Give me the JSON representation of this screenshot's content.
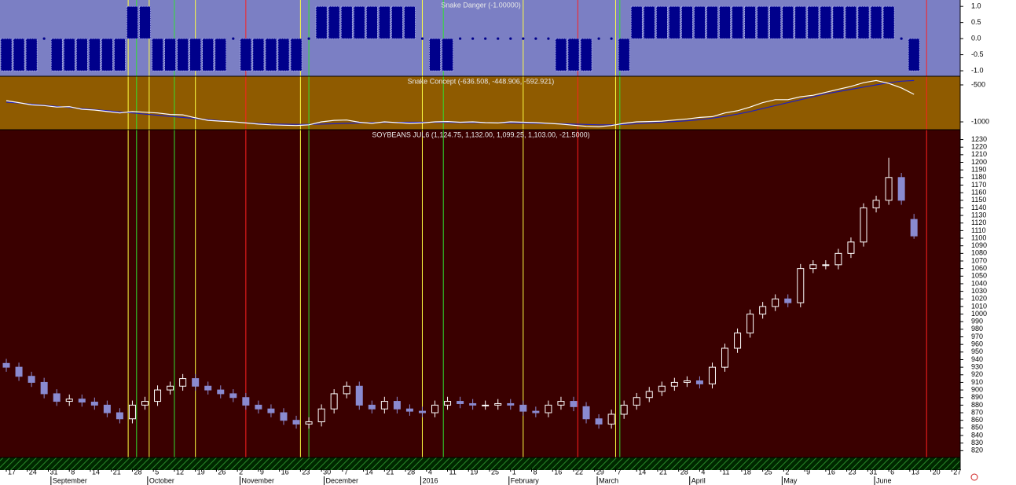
{
  "chart_data": [
    {
      "type": "bar",
      "title": "Snake Danger (-1.00000)",
      "color": "#00008b",
      "background": "#7b7fc4",
      "x": [
        0,
        3,
        6,
        9,
        12,
        15,
        18,
        21,
        24,
        27,
        30,
        33,
        36,
        39,
        42,
        45,
        48,
        51,
        54,
        57,
        60,
        63,
        66,
        69,
        72,
        75,
        78,
        81,
        84,
        87,
        90,
        93,
        96,
        99,
        102,
        105,
        108,
        111,
        114,
        117,
        120,
        123,
        126,
        129,
        132,
        135,
        138,
        141,
        144,
        147,
        150,
        153,
        156,
        159,
        162,
        165,
        168,
        171,
        174,
        177,
        180,
        183,
        186,
        189,
        192,
        195,
        198,
        201,
        204,
        207,
        210,
        213,
        216
      ],
      "values": [
        -1,
        -1,
        -1,
        0,
        -1,
        -1,
        -1,
        -1,
        -1,
        -1,
        1,
        1,
        -1,
        -1,
        -1,
        -1,
        -1,
        -1,
        0,
        -1,
        -1,
        -1,
        -1,
        -1,
        0,
        1,
        1,
        1,
        1,
        1,
        1,
        1,
        1,
        0,
        -1,
        -1,
        0,
        0,
        0,
        0,
        0,
        0,
        0,
        0,
        -1,
        -1,
        -1,
        0,
        0,
        -1,
        1,
        1,
        1,
        1,
        1,
        1,
        1,
        1,
        1,
        1,
        1,
        1,
        1,
        1,
        1,
        1,
        1,
        1,
        1,
        1,
        1,
        0,
        -1
      ],
      "xlim": [
        -1.5,
        227
      ],
      "ylim": [
        -1.17,
        1.2
      ],
      "yticks": [
        {
          "value": 1,
          "label": "1.0"
        },
        {
          "value": 0.5,
          "label": "0.5"
        },
        {
          "value": 0,
          "label": "0.0"
        },
        {
          "value": -0.5,
          "label": "-0.5"
        },
        {
          "value": -1,
          "label": "-1.0"
        }
      ]
    },
    {
      "type": "line",
      "title": "Snake Concept (-636.508, -448.906, -592.921)",
      "background": "#8f5b00",
      "x": [
        0,
        3,
        6,
        9,
        12,
        15,
        18,
        21,
        24,
        27,
        30,
        33,
        36,
        39,
        42,
        45,
        48,
        51,
        54,
        57,
        60,
        63,
        66,
        69,
        72,
        75,
        78,
        81,
        84,
        87,
        90,
        93,
        96,
        99,
        102,
        105,
        108,
        111,
        114,
        117,
        120,
        123,
        126,
        129,
        132,
        135,
        138,
        141,
        144,
        147,
        150,
        153,
        156,
        159,
        162,
        165,
        168,
        171,
        174,
        177,
        180,
        183,
        186,
        189,
        192,
        195,
        198,
        201,
        204,
        207,
        210,
        213,
        216
      ],
      "series": [
        {
          "color": "#2020c0",
          "values": [
            -734,
            -745,
            -760,
            -775,
            -790,
            -805,
            -820,
            -835,
            -850,
            -865,
            -880,
            -895,
            -910,
            -925,
            -940,
            -955,
            -970,
            -985,
            -1000,
            -1012,
            -1022,
            -1028,
            -1032,
            -1034,
            -1034,
            -1030,
            -1025,
            -1020,
            -1015,
            -1010,
            -1008,
            -1006,
            -1005,
            -1005,
            -1006,
            -1008,
            -1010,
            -1010,
            -1010,
            -1012,
            -1015,
            -1018,
            -1020,
            -1022,
            -1025,
            -1030,
            -1035,
            -1040,
            -1040,
            -1035,
            -1025,
            -1015,
            -1005,
            -995,
            -985,
            -970,
            -950,
            -925,
            -895,
            -860,
            -820,
            -780,
            -740,
            -700,
            -660,
            -620,
            -590,
            -560,
            -530,
            -500,
            -470,
            -450,
            -440
          ]
        },
        {
          "color": "#ffffff",
          "values": [
            -713,
            -740,
            -770,
            -780,
            -800,
            -795,
            -830,
            -840,
            -860,
            -880,
            -860,
            -870,
            -880,
            -900,
            -905,
            -945,
            -980,
            -990,
            -1000,
            -1015,
            -1030,
            -1040,
            -1045,
            -1050,
            -1040,
            -1000,
            -980,
            -975,
            -1005,
            -1020,
            -1000,
            -1010,
            -1020,
            -1015,
            -1000,
            -995,
            -1005,
            -1000,
            -1010,
            -1015,
            -1000,
            -1005,
            -1010,
            -1020,
            -1030,
            -1045,
            -1060,
            -1065,
            -1050,
            -1020,
            -1000,
            -995,
            -990,
            -975,
            -960,
            -940,
            -930,
            -880,
            -850,
            -800,
            -740,
            -700,
            -700,
            -660,
            -640,
            -600,
            -560,
            -520,
            -470,
            -440,
            -480,
            -540,
            -628
          ]
        }
      ],
      "xlim": [
        -1.5,
        227
      ],
      "ylim": [
        -1106,
        -383
      ],
      "yticks": [
        -500,
        -1000
      ]
    },
    {
      "type": "candlestick",
      "title": "SOYBEANS JUL6 (1,124.75, 1,132.00, 1,099.25, 1,103.00, -21.5000)",
      "background": "#3a0000",
      "up_color": "#ffffff",
      "down_color": "#8a8ad0",
      "x": [
        0,
        3,
        6,
        9,
        12,
        15,
        18,
        21,
        24,
        27,
        30,
        33,
        36,
        39,
        42,
        45,
        48,
        51,
        54,
        57,
        60,
        63,
        66,
        69,
        72,
        75,
        78,
        81,
        84,
        87,
        90,
        93,
        96,
        99,
        102,
        105,
        108,
        111,
        114,
        117,
        120,
        123,
        126,
        129,
        132,
        135,
        138,
        141,
        144,
        147,
        150,
        153,
        156,
        159,
        162,
        165,
        168,
        171,
        174,
        177,
        180,
        183,
        186,
        189,
        192,
        195,
        198,
        201,
        204,
        207,
        210,
        213,
        216
      ],
      "open": [
        935,
        930,
        918,
        910,
        895,
        885,
        888,
        884,
        880,
        870,
        862,
        880,
        885,
        900,
        905,
        915,
        905,
        900,
        895,
        890,
        880,
        875,
        870,
        860,
        855,
        858,
        875,
        895,
        905,
        880,
        875,
        885,
        875,
        872,
        870,
        880,
        885,
        882,
        880,
        880,
        882,
        880,
        872,
        870,
        880,
        885,
        878,
        862,
        855,
        868,
        880,
        890,
        898,
        905,
        910,
        912,
        908,
        930,
        955,
        975,
        1000,
        1010,
        1020,
        1015,
        1060,
        1065,
        1065,
        1080,
        1095,
        1140,
        1150,
        1180,
        1124.75
      ],
      "high": [
        941,
        936,
        924,
        916,
        901,
        894,
        894,
        890,
        886,
        876,
        886,
        891,
        906,
        911,
        921,
        921,
        911,
        906,
        901,
        896,
        886,
        881,
        876,
        866,
        864,
        881,
        901,
        911,
        911,
        886,
        891,
        891,
        881,
        878,
        886,
        891,
        891,
        888,
        886,
        888,
        888,
        886,
        878,
        886,
        891,
        891,
        884,
        868,
        874,
        886,
        896,
        904,
        911,
        916,
        918,
        918,
        936,
        961,
        981,
        1006,
        1016,
        1026,
        1026,
        1066,
        1071,
        1071,
        1086,
        1101,
        1146,
        1156,
        1206,
        1186,
        1132
      ],
      "low": [
        924,
        912,
        904,
        889,
        879,
        879,
        878,
        874,
        864,
        856,
        856,
        874,
        879,
        894,
        899,
        899,
        894,
        889,
        884,
        874,
        869,
        864,
        854,
        849,
        849,
        852,
        869,
        889,
        874,
        869,
        869,
        869,
        866,
        864,
        864,
        874,
        876,
        874,
        874,
        874,
        874,
        866,
        864,
        864,
        874,
        872,
        856,
        849,
        849,
        862,
        874,
        884,
        892,
        899,
        904,
        902,
        902,
        924,
        949,
        969,
        994,
        1004,
        1009,
        1009,
        1054,
        1059,
        1059,
        1074,
        1089,
        1134,
        1144,
        1144,
        1099.25
      ],
      "close": [
        930,
        918,
        910,
        895,
        885,
        888,
        884,
        880,
        870,
        862,
        880,
        885,
        900,
        905,
        915,
        905,
        900,
        895,
        890,
        880,
        875,
        870,
        860,
        855,
        858,
        875,
        895,
        905,
        880,
        875,
        885,
        875,
        872,
        870,
        880,
        885,
        882,
        880,
        880,
        882,
        880,
        872,
        870,
        880,
        885,
        878,
        862,
        855,
        868,
        880,
        890,
        898,
        905,
        910,
        912,
        908,
        930,
        955,
        975,
        1000,
        1010,
        1020,
        1015,
        1060,
        1065,
        1065,
        1080,
        1095,
        1140,
        1150,
        1180,
        1150,
        1103
      ],
      "xlim": [
        -1.5,
        227
      ],
      "ylim": [
        811,
        1243
      ],
      "yticks": [
        820,
        830,
        840,
        850,
        860,
        870,
        880,
        890,
        900,
        910,
        920,
        930,
        940,
        950,
        960,
        970,
        980,
        990,
        1000,
        1010,
        1020,
        1030,
        1040,
        1050,
        1060,
        1070,
        1080,
        1090,
        1100,
        1110,
        1120,
        1130,
        1140,
        1150,
        1160,
        1170,
        1180,
        1190,
        1200,
        1210,
        1220,
        1230
      ],
      "xticks": [
        {
          "value": 0,
          "label": "17"
        },
        {
          "value": 5,
          "label": "24"
        },
        {
          "value": 10,
          "label": "31"
        },
        {
          "value": 15,
          "label": "8"
        },
        {
          "value": 20,
          "label": "14"
        },
        {
          "value": 25,
          "label": "21"
        },
        {
          "value": 30,
          "label": "28"
        },
        {
          "value": 35,
          "label": "5"
        },
        {
          "value": 40,
          "label": "12"
        },
        {
          "value": 45,
          "label": "19"
        },
        {
          "value": 50,
          "label": "26"
        },
        {
          "value": 55,
          "label": "2"
        },
        {
          "value": 60,
          "label": "9"
        },
        {
          "value": 65,
          "label": "16"
        },
        {
          "value": 70,
          "label": "23"
        },
        {
          "value": 75,
          "label": "30"
        },
        {
          "value": 80,
          "label": "7"
        },
        {
          "value": 85,
          "label": "14"
        },
        {
          "value": 90,
          "label": "21"
        },
        {
          "value": 95,
          "label": "28"
        },
        {
          "value": 100,
          "label": "4"
        },
        {
          "value": 105,
          "label": "11"
        },
        {
          "value": 110,
          "label": "19"
        },
        {
          "value": 115,
          "label": "25"
        },
        {
          "value": 120,
          "label": "1"
        },
        {
          "value": 125,
          "label": "8"
        },
        {
          "value": 130,
          "label": "16"
        },
        {
          "value": 135,
          "label": "22"
        },
        {
          "value": 140,
          "label": "29"
        },
        {
          "value": 145,
          "label": "7"
        },
        {
          "value": 150,
          "label": "14"
        },
        {
          "value": 155,
          "label": "21"
        },
        {
          "value": 160,
          "label": "28"
        },
        {
          "value": 165,
          "label": "4"
        },
        {
          "value": 170,
          "label": "11"
        },
        {
          "value": 175,
          "label": "18"
        },
        {
          "value": 180,
          "label": "25"
        },
        {
          "value": 185,
          "label": "2"
        },
        {
          "value": 190,
          "label": "9"
        },
        {
          "value": 195,
          "label": "16"
        },
        {
          "value": 200,
          "label": "23"
        },
        {
          "value": 205,
          "label": "31"
        },
        {
          "value": 210,
          "label": "6"
        },
        {
          "value": 215,
          "label": "13"
        },
        {
          "value": 220,
          "label": "20"
        },
        {
          "value": 225,
          "label": "27"
        }
      ],
      "month_ticks": [
        {
          "value": 11,
          "label": "September"
        },
        {
          "value": 34,
          "label": "October"
        },
        {
          "value": 56,
          "label": "November"
        },
        {
          "value": 76,
          "label": "December"
        },
        {
          "value": 99,
          "label": "2016"
        },
        {
          "value": 120,
          "label": "February"
        },
        {
          "value": 141,
          "label": "March"
        },
        {
          "value": 163,
          "label": "April"
        },
        {
          "value": 185,
          "label": "May"
        },
        {
          "value": 207,
          "label": "June"
        }
      ],
      "signals": [
        {
          "color": "#ff2020",
          "x": [
            57,
            136,
            219
          ]
        },
        {
          "color": "#ffff40",
          "x": [
            29,
            34,
            45,
            70,
            99,
            123,
            145
          ]
        },
        {
          "color": "#30e030",
          "x": [
            31,
            40,
            72,
            104,
            146
          ]
        }
      ]
    }
  ]
}
